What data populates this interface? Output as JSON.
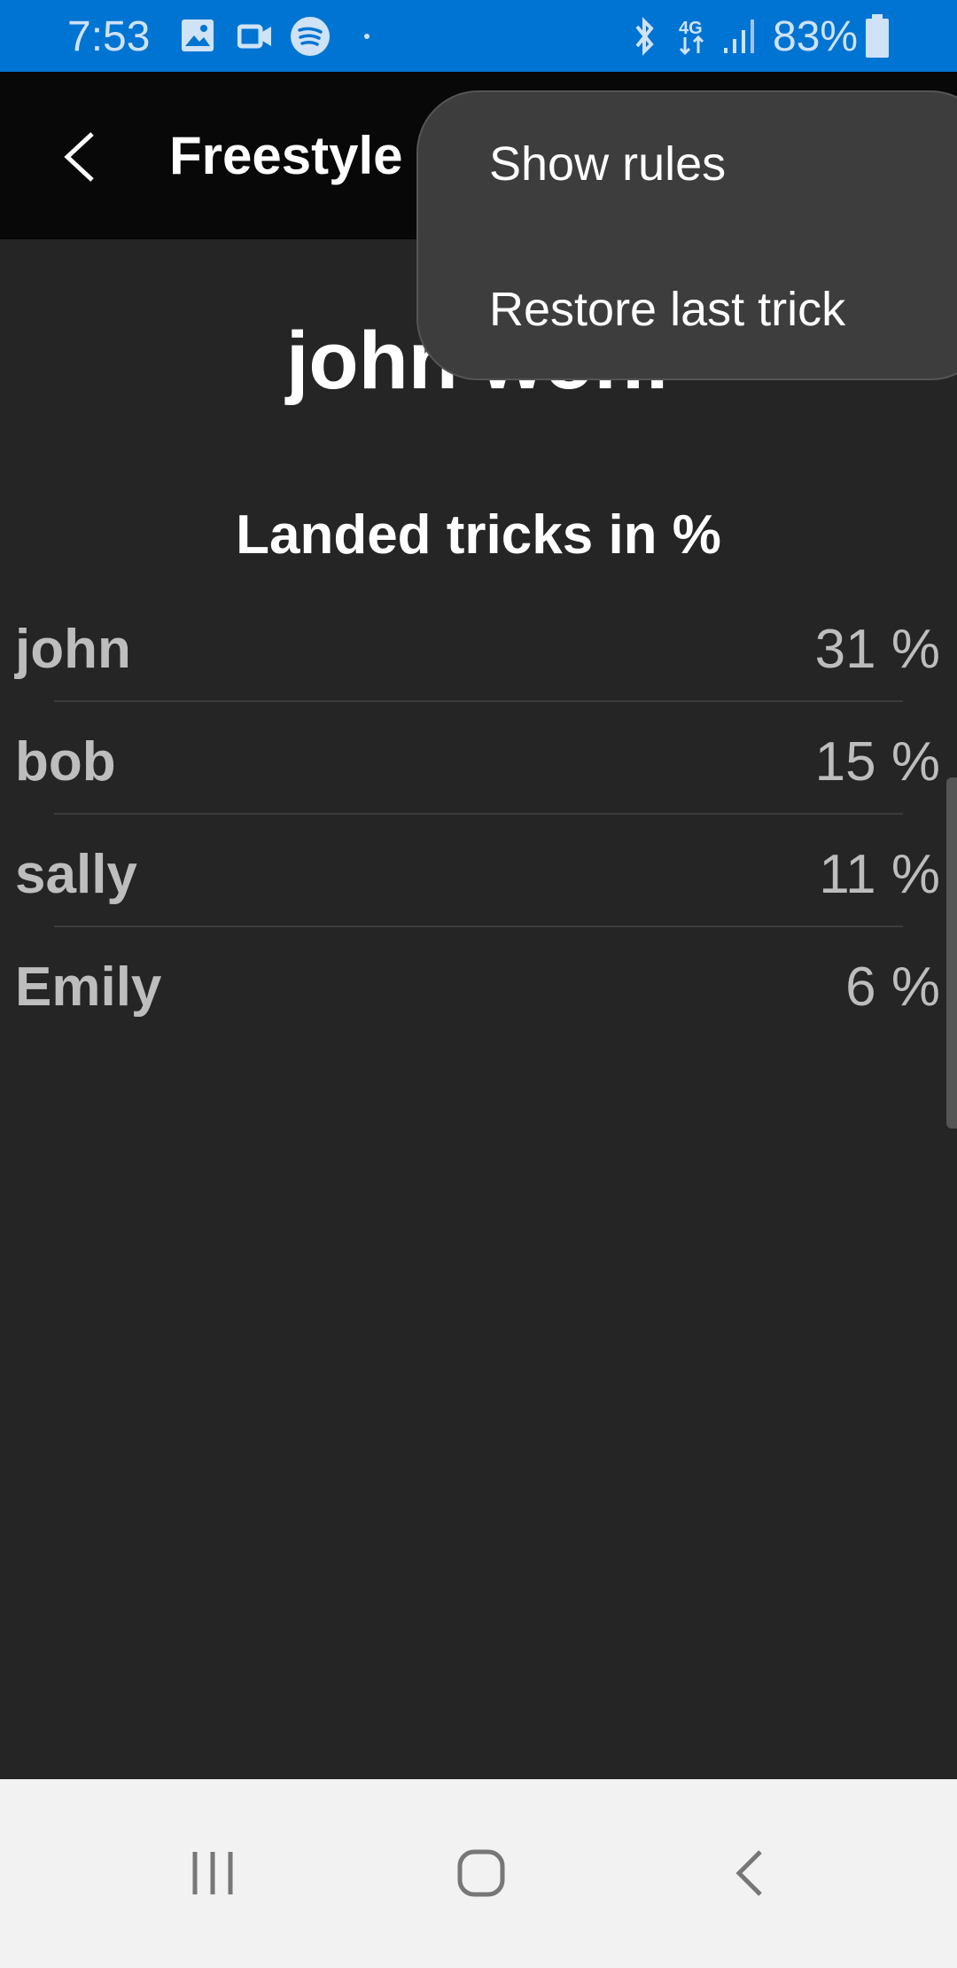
{
  "status_bar": {
    "time": "7:53",
    "battery": "83%",
    "network": "4G",
    "icons": [
      "gallery-icon",
      "video-icon",
      "spotify-icon",
      "dot-icon",
      "bluetooth-icon",
      "4g-icon",
      "signal-icon",
      "battery-icon"
    ],
    "color": "#0074d2"
  },
  "app_bar": {
    "title": "Freestyle Game",
    "back_icon": "chevron-left-icon"
  },
  "main": {
    "winner": "john won!",
    "subtitle": "Landed tricks in %",
    "players": [
      {
        "name": "john",
        "value": "31 %"
      },
      {
        "name": "bob",
        "value": "15 %"
      },
      {
        "name": "sally",
        "value": "11 %"
      },
      {
        "name": "Emily",
        "value": "6 %"
      }
    ]
  },
  "menu": {
    "items": [
      {
        "label": "Show rules"
      },
      {
        "label": "Restore last trick"
      }
    ]
  },
  "nav_bar": {
    "icons": [
      "recents-icon",
      "home-icon",
      "back-icon"
    ]
  }
}
